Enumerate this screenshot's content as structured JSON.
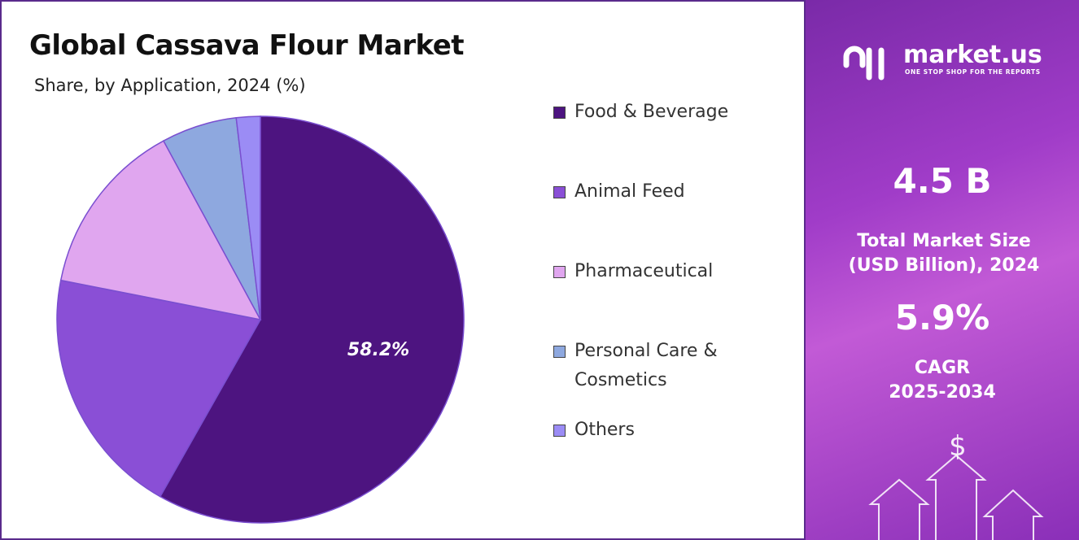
{
  "chart_data": {
    "type": "pie",
    "title": "Global Cassava Flour Market",
    "subtitle": "Share, by Application, 2024 (%)",
    "categories": [
      "Food & Beverage",
      "Animal Feed",
      "Pharmaceutical",
      "Personal Care & Cosmetics",
      "Others"
    ],
    "values": [
      58.2,
      19.9,
      14,
      6,
      1.9
    ],
    "value_labels": [
      "58.2%",
      null,
      null,
      null,
      null
    ],
    "colors": [
      "#4d1480",
      "#8a4fd6",
      "#e0a6ef",
      "#8ea8df",
      "#9b8cf5"
    ]
  },
  "sidebar": {
    "brand": "market.us",
    "tagline": "ONE STOP SHOP FOR THE REPORTS",
    "market_size": "4.5 B",
    "market_size_label": "Total Market Size (USD Billion), 2024",
    "cagr": "5.9%",
    "cagr_label": "CAGR",
    "cagr_period": "2025-2034"
  }
}
